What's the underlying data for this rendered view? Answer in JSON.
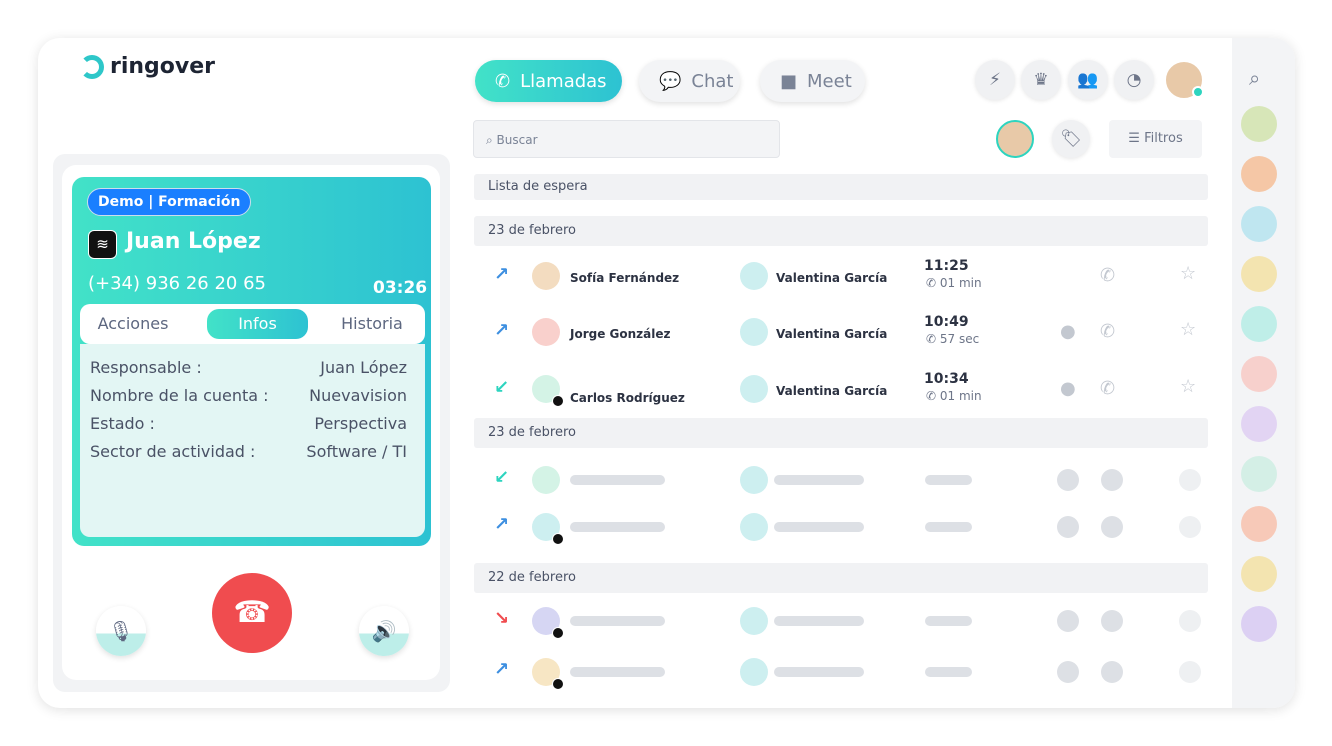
{
  "app": {
    "logo": "ringover"
  },
  "nav": {
    "tabs": [
      {
        "label": "Llamadas",
        "icon": "phone-icon",
        "active": true
      },
      {
        "label": "Chat",
        "icon": "chat-icon"
      },
      {
        "label": "Meet",
        "icon": "video-icon"
      }
    ],
    "icons": [
      "lightning-icon",
      "crown-icon",
      "team-icon",
      "stats-icon"
    ]
  },
  "call": {
    "tag": "Demo | Formación",
    "name": "Juan López",
    "phone": "(+34) 936 26 20 65",
    "timer": "03:26",
    "tabs": [
      "Acciones",
      "Infos",
      "Historia"
    ],
    "active_tab": "Infos",
    "info": [
      {
        "k": "Responsable :",
        "v": "Juan López"
      },
      {
        "k": "Nombre de la cuenta :",
        "v": "Nuevavision"
      },
      {
        "k": "Estado :",
        "v": "Perspectiva"
      },
      {
        "k": "Sector de actividad :",
        "v": "Software / TI"
      }
    ]
  },
  "search": {
    "placeholder": "Buscar"
  },
  "filters": {
    "label": "Filtros"
  },
  "list": {
    "waiting": "Lista de espera",
    "sections": [
      "23 de febrero",
      "23 de febrero",
      "22 de febrero"
    ],
    "calls": [
      {
        "dir": "outgoing",
        "contact": "Sofía Fernández",
        "agent": "Valentina García",
        "time": "11:25",
        "duration": "01 min"
      },
      {
        "dir": "outgoing",
        "contact": "Jorge González",
        "agent": "Valentina García",
        "time": "10:49",
        "duration": "57 sec"
      },
      {
        "dir": "incoming",
        "contact": "Carlos Rodríguez",
        "agent": "Valentina García",
        "time": "10:34",
        "duration": "01 min"
      }
    ]
  },
  "colors": {
    "accent": "#2ec7c9",
    "outgoing": "#3d8fe0",
    "incoming": "#2dd4bf",
    "missed": "#f04c4f",
    "end_call": "#f04c4f",
    "tag": "#1a7fff"
  }
}
